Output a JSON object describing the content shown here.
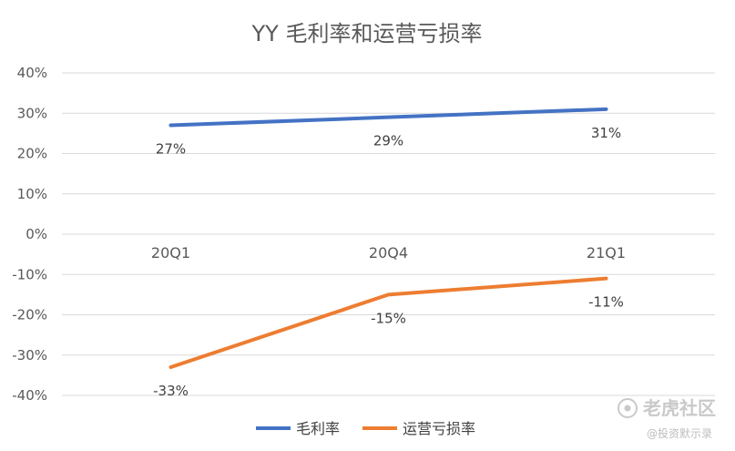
{
  "chart_data": {
    "type": "line",
    "title": "YY 毛利率和运营亏损率",
    "categories": [
      "20Q1",
      "20Q4",
      "21Q1"
    ],
    "series": [
      {
        "name": "毛利率",
        "values": [
          27,
          29,
          31
        ],
        "labels": [
          "27%",
          "29%",
          "31%"
        ],
        "color": "#4472C4"
      },
      {
        "name": "运营亏损率",
        "values": [
          -33,
          -15,
          -11
        ],
        "labels": [
          "-33%",
          "-15%",
          "-11%"
        ],
        "color": "#ED7D31"
      }
    ],
    "ylim": [
      -40,
      40
    ],
    "yticks": [
      40,
      30,
      20,
      10,
      0,
      -10,
      -20,
      -30,
      -40
    ],
    "ytick_labels": [
      "40%",
      "30%",
      "20%",
      "10%",
      "0%",
      "-10%",
      "-20%",
      "-30%",
      "-40%"
    ],
    "grid": true,
    "legend": "bottom",
    "gridline_color": "#d9d9d9"
  },
  "watermark": {
    "main": "老虎社区",
    "sub": "@投资默示录"
  }
}
